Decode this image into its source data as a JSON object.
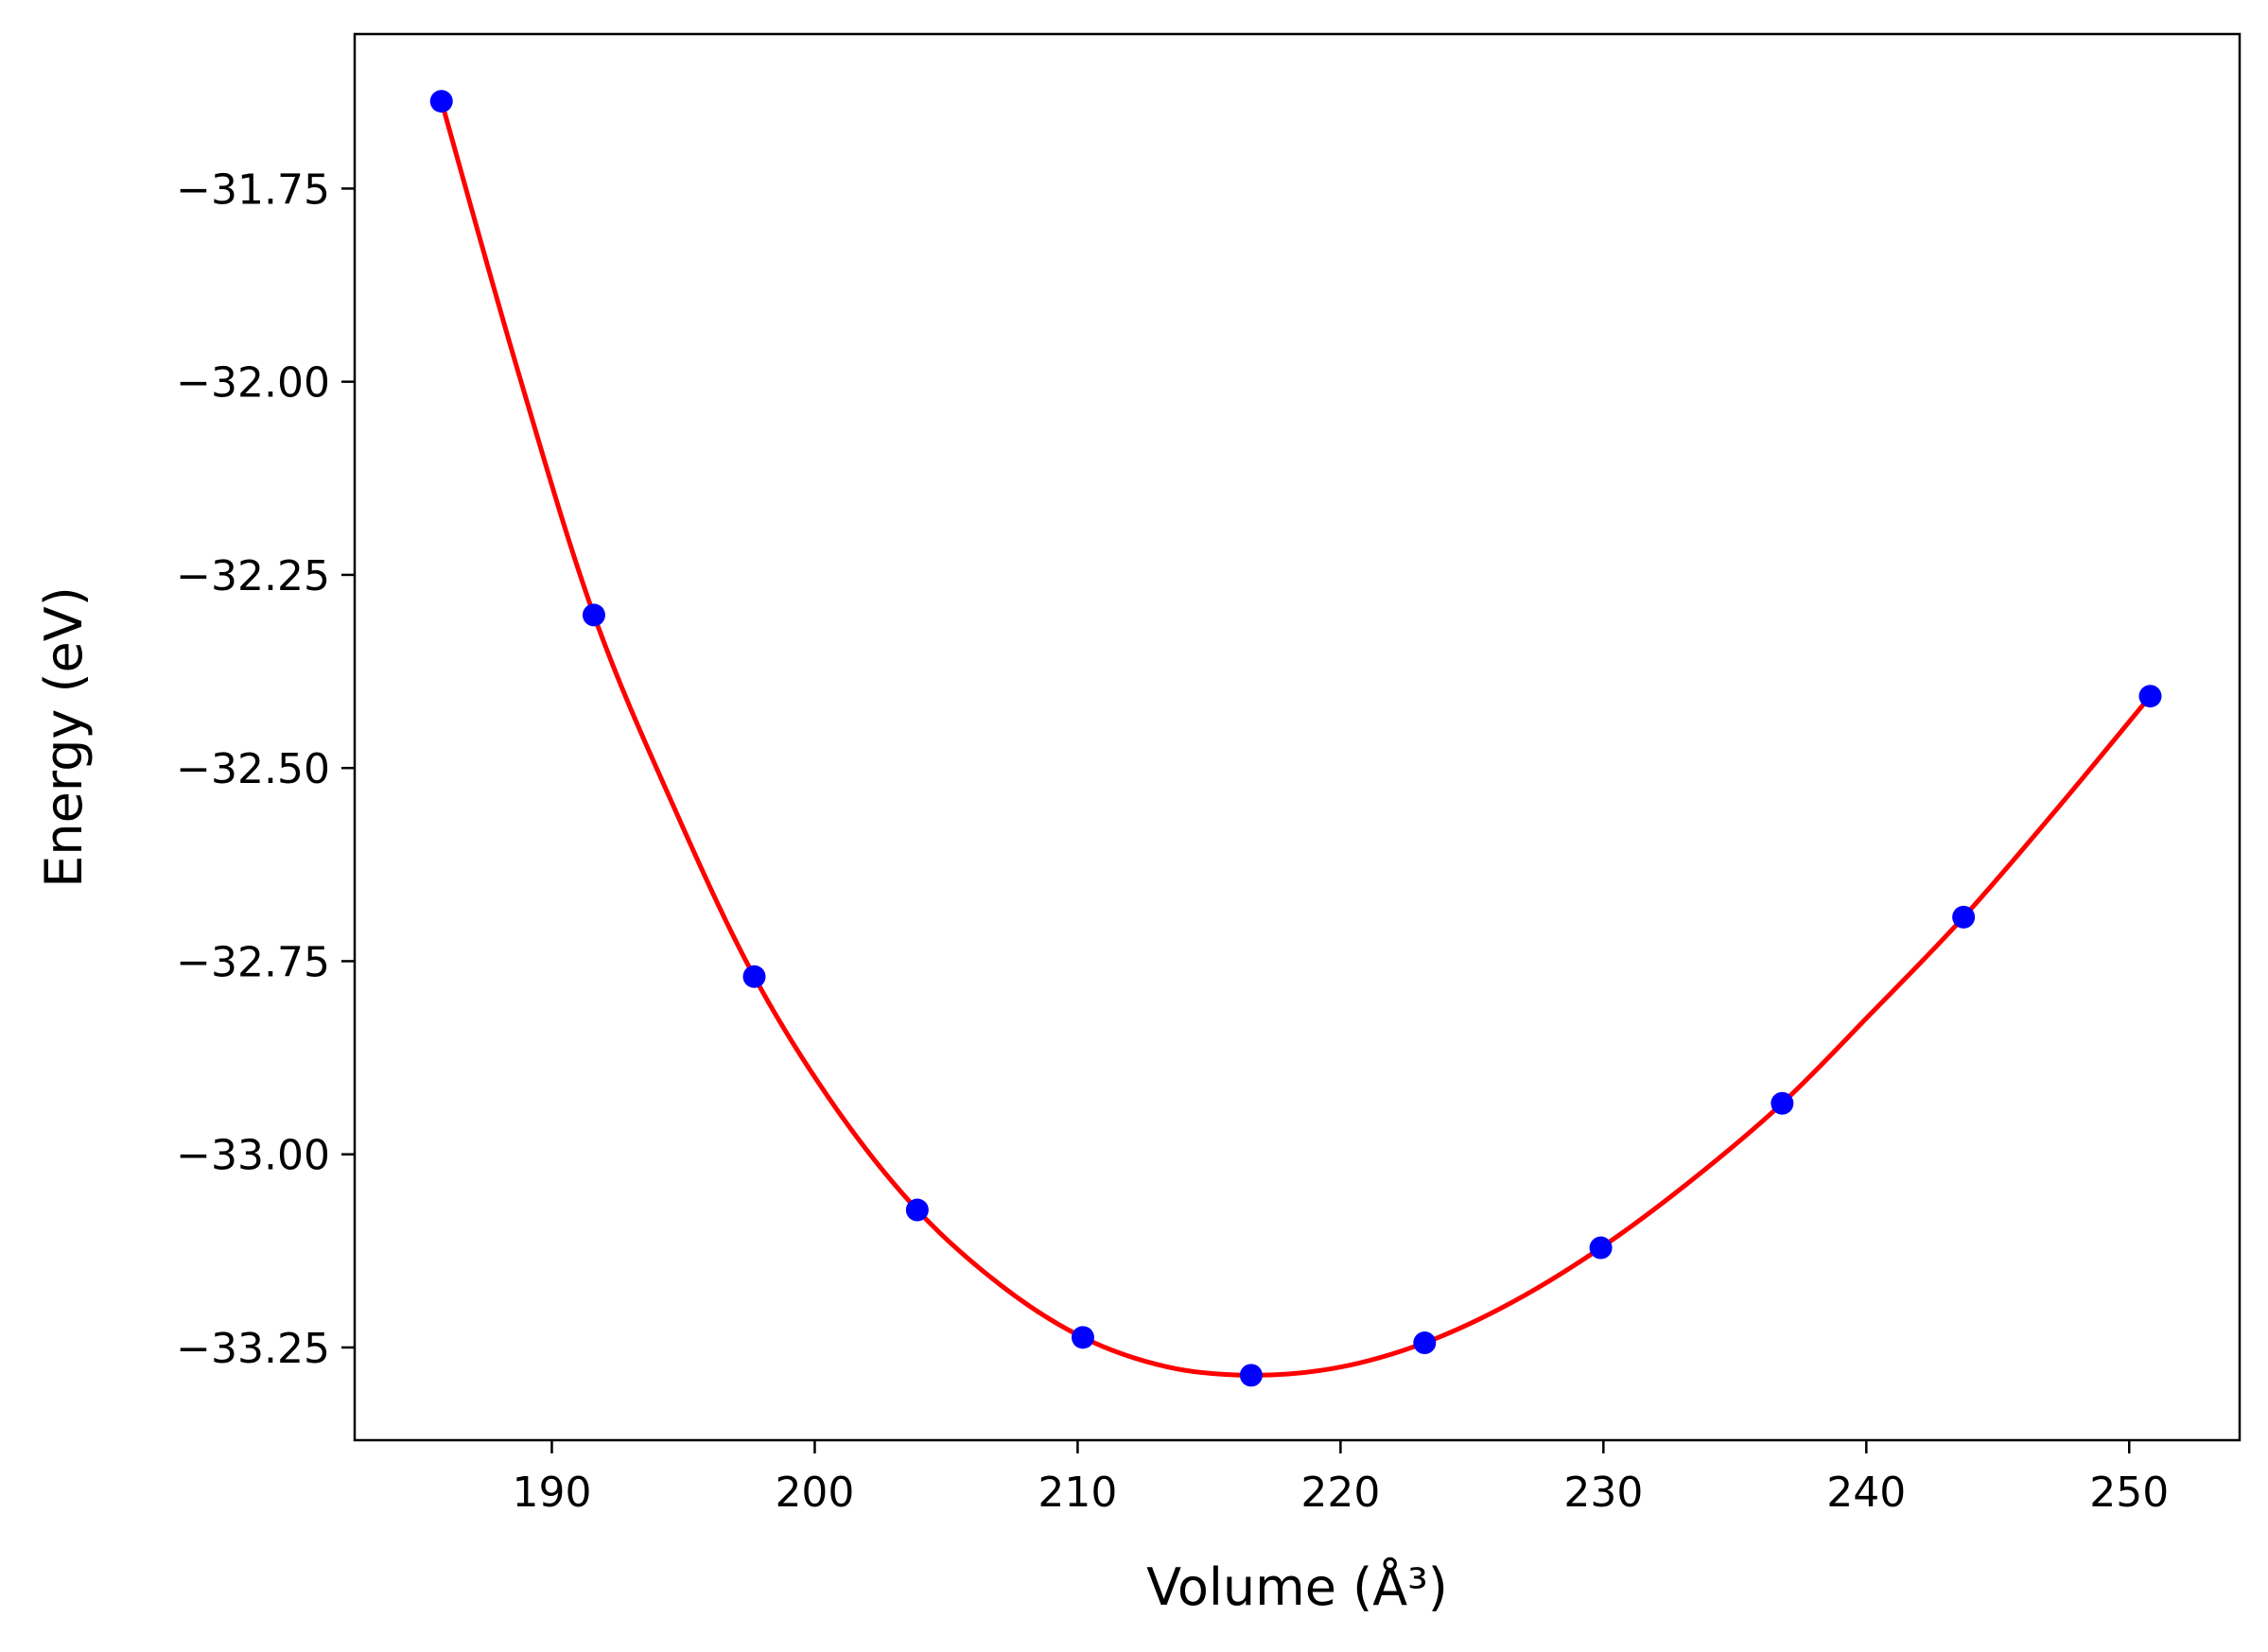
{
  "chart_data": {
    "type": "scatter",
    "xlabel": "Volume (Å³)",
    "ylabel": "Energy (eV)",
    "xlim": [
      182.5,
      254.2
    ],
    "ylim": [
      -33.37,
      -31.55
    ],
    "x_ticks": [
      190,
      200,
      210,
      220,
      230,
      240,
      250
    ],
    "y_ticks": [
      -31.75,
      -32.0,
      -32.25,
      -32.5,
      -32.75,
      -33.0,
      -33.25
    ],
    "x_tick_labels": [
      "190",
      "200",
      "210",
      "220",
      "230",
      "240",
      "250"
    ],
    "y_tick_labels": [
      "−31.75",
      "−32.00",
      "−32.25",
      "−32.50",
      "−32.75",
      "−33.00",
      "−33.25"
    ],
    "grid": false,
    "legend": "none",
    "series": [
      {
        "kind": "scatter",
        "color": "#0000ff",
        "x": [
          185.8,
          191.6,
          197.7,
          203.9,
          210.2,
          216.6,
          223.2,
          229.9,
          236.8,
          243.7,
          250.8
        ],
        "y": [
          -31.637,
          -32.302,
          -32.77,
          -33.072,
          -33.237,
          -33.286,
          -33.244,
          -33.121,
          -32.934,
          -32.693,
          -32.407
        ]
      },
      {
        "kind": "line",
        "color": "#ff0000",
        "x": [
          185.8,
          188.7,
          191.6,
          194.7,
          197.7,
          200.8,
          203.9,
          207.1,
          210.2,
          213.4,
          216.6,
          219.9,
          223.2,
          226.5,
          229.9,
          233.3,
          236.8,
          240.2,
          243.7,
          247.2,
          250.8
        ],
        "y": [
          -31.637,
          -31.985,
          -32.302,
          -32.555,
          -32.77,
          -32.94,
          -33.072,
          -33.17,
          -33.237,
          -33.275,
          -33.286,
          -33.276,
          -33.244,
          -33.192,
          -33.121,
          -33.035,
          -32.934,
          -32.817,
          -32.693,
          -32.555,
          -32.407
        ]
      }
    ]
  }
}
